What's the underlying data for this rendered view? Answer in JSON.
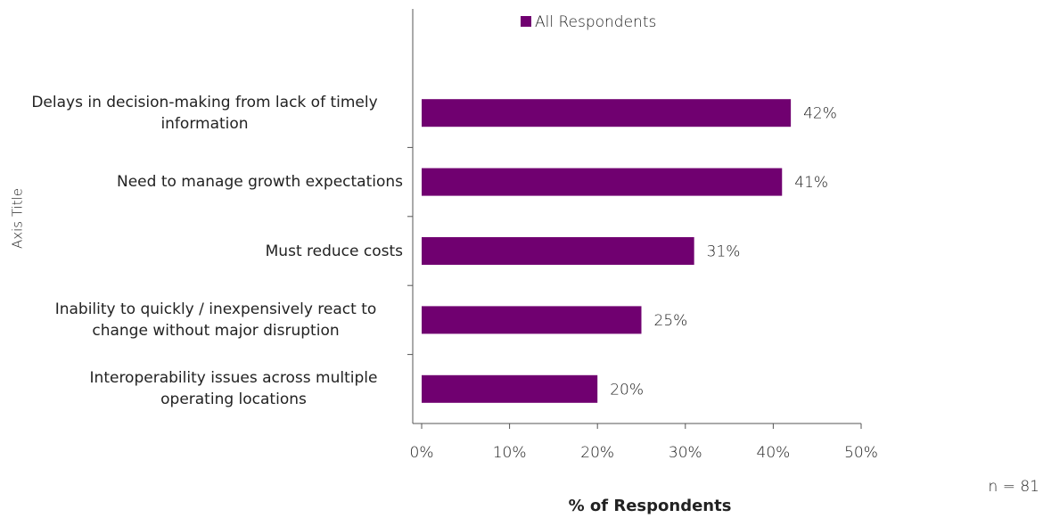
{
  "chart_data": {
    "type": "bar",
    "orientation": "horizontal",
    "categories": [
      "Delays in decision-making from lack of timely information",
      "Need to manage growth expectations",
      "Must reduce costs",
      "Inability to quickly / inexpensively react to change without major disruption",
      "Interoperability issues across multiple operating locations"
    ],
    "series": [
      {
        "name": "All Respondents",
        "color": "#700070",
        "values": [
          42,
          41,
          31,
          25,
          20
        ],
        "value_labels": [
          "42%",
          "41%",
          "31%",
          "25%",
          "20%"
        ]
      }
    ],
    "xlim": [
      0,
      50
    ],
    "xticks": [
      {
        "value": 0,
        "label": "0%"
      },
      {
        "value": 10,
        "label": "10%"
      },
      {
        "value": 20,
        "label": "20%"
      },
      {
        "value": 30,
        "label": "30%"
      },
      {
        "value": 40,
        "label": "40%"
      },
      {
        "value": 50,
        "label": "50%"
      }
    ],
    "xlabel": "% of Respondents",
    "ylabel": "Axis Title",
    "annotation": "n = 81",
    "legend": "top"
  }
}
